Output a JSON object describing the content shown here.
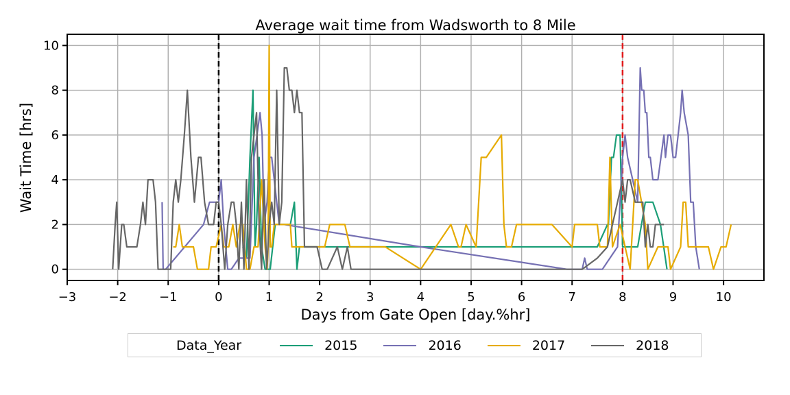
{
  "chart_data": {
    "type": "line",
    "title": "Average wait time from Wadsworth to 8 Mile",
    "xlabel": "Days from Gate Open [day.%hr]",
    "ylabel": "Wait Time [hrs]",
    "xlim": [
      -3,
      10.8
    ],
    "ylim": [
      -0.5,
      10.5
    ],
    "xticks": [
      "−3",
      "−2",
      "−1",
      "0",
      "1",
      "2",
      "3",
      "4",
      "5",
      "6",
      "7",
      "8",
      "9",
      "10"
    ],
    "yticks": [
      "0",
      "2",
      "4",
      "6",
      "8",
      "10"
    ],
    "grid": true,
    "legend": {
      "title": "Data_Year",
      "placement": "bottom-center, outside"
    },
    "reference_lines": [
      {
        "x": 0,
        "color": "#000000",
        "style": "dashed"
      },
      {
        "x": 8,
        "color": "#e31a1c",
        "style": "dashed"
      }
    ],
    "series": [
      {
        "name": "2015",
        "color": "#1b9e77",
        "x": [
          0.48,
          0.55,
          0.62,
          0.68,
          0.72,
          0.75,
          0.8,
          0.85,
          0.92,
          1.02,
          1.12,
          1.2,
          1.3,
          1.42,
          1.5,
          1.55,
          1.6,
          1.65,
          1.75,
          4.0,
          7.5,
          7.7,
          7.72,
          7.78,
          7.82,
          7.88,
          7.95,
          8.0,
          8.05,
          8.1,
          8.3,
          8.45,
          8.6,
          8.75,
          8.88
        ],
        "y": [
          1.0,
          0.5,
          5.0,
          8.0,
          1.0,
          2.0,
          5.0,
          1.0,
          0.0,
          0.0,
          2.0,
          2.0,
          2.0,
          2.0,
          3.0,
          0.0,
          1.0,
          1.0,
          1.0,
          1.0,
          1.0,
          2.0,
          2.0,
          5.0,
          5.0,
          6.0,
          6.0,
          1.0,
          1.0,
          1.0,
          1.0,
          3.0,
          3.0,
          2.0,
          0.0
        ]
      },
      {
        "name": "2016",
        "color": "#7570b3",
        "x": [
          -1.12,
          -1.1,
          -1.05,
          -0.3,
          -0.18,
          -0.1,
          0.0,
          0.05,
          0.1,
          0.18,
          0.25,
          0.4,
          0.5,
          0.62,
          0.7,
          0.76,
          0.82,
          0.86,
          0.9,
          0.96,
          1.0,
          1.05,
          1.1,
          1.15,
          1.2,
          1.25,
          1.3,
          4.0,
          6.9,
          7.2,
          7.25,
          7.3,
          7.6,
          7.9,
          8.0,
          8.05,
          8.1,
          8.2,
          8.3,
          8.35,
          8.38,
          8.42,
          8.45,
          8.48,
          8.52,
          8.55,
          8.6,
          8.7,
          8.82,
          8.85,
          8.9,
          8.95,
          9.0,
          9.05,
          9.15,
          9.18,
          9.22,
          9.3,
          9.35,
          9.4,
          9.45,
          9.52
        ],
        "y": [
          3.0,
          0.0,
          0.0,
          2.0,
          3.0,
          3.0,
          3.0,
          4.0,
          2.0,
          0.0,
          0.0,
          0.5,
          0.5,
          0.5,
          5.0,
          6.0,
          7.0,
          6.0,
          2.0,
          3.0,
          5.0,
          5.0,
          4.0,
          3.0,
          2.0,
          2.0,
          2.0,
          1.0,
          0.0,
          0.0,
          0.5,
          0.0,
          0.0,
          1.0,
          5.0,
          6.0,
          5.0,
          4.0,
          3.0,
          9.0,
          8.0,
          8.0,
          7.0,
          7.0,
          5.0,
          5.0,
          4.0,
          4.0,
          6.0,
          5.0,
          6.0,
          6.0,
          5.0,
          5.0,
          7.0,
          8.0,
          7.0,
          6.0,
          3.0,
          3.0,
          1.0,
          0.0
        ]
      },
      {
        "name": "2017",
        "color": "#e6ab02",
        "x": [
          -0.9,
          -0.85,
          -0.78,
          -0.72,
          -0.5,
          -0.42,
          -0.4,
          -0.2,
          -0.15,
          -0.05,
          0.05,
          0.1,
          0.2,
          0.28,
          0.35,
          0.42,
          0.48,
          0.55,
          0.62,
          0.7,
          0.78,
          0.85,
          0.92,
          0.96,
          0.98,
          1.0,
          1.02,
          1.05,
          1.1,
          1.3,
          1.42,
          1.45,
          1.5,
          1.55,
          1.6,
          2.1,
          2.2,
          2.5,
          2.6,
          3.3,
          4.0,
          4.6,
          4.75,
          4.8,
          4.9,
          5.1,
          5.15,
          5.2,
          5.3,
          5.6,
          5.65,
          5.7,
          5.8,
          5.9,
          6.6,
          7.0,
          7.05,
          7.5,
          7.55,
          7.6,
          7.7,
          7.75,
          7.8,
          7.95,
          8.15,
          8.25,
          8.3,
          8.45,
          8.5,
          8.7,
          8.9,
          8.95,
          9.15,
          9.2,
          9.25,
          9.3,
          9.7,
          9.8,
          9.95,
          10.0,
          10.05,
          10.15
        ],
        "y": [
          1.0,
          1.0,
          2.0,
          1.0,
          1.0,
          0.0,
          0.0,
          0.0,
          1.0,
          1.0,
          2.0,
          1.0,
          1.0,
          2.0,
          1.0,
          2.0,
          2.0,
          0.0,
          0.0,
          1.0,
          1.0,
          4.0,
          1.0,
          0.0,
          1.0,
          10.0,
          1.0,
          1.0,
          2.0,
          2.0,
          2.0,
          1.0,
          1.0,
          1.0,
          1.0,
          1.0,
          2.0,
          2.0,
          1.0,
          1.0,
          0.0,
          2.0,
          1.0,
          1.0,
          2.0,
          1.0,
          3.0,
          5.0,
          5.0,
          6.0,
          2.0,
          1.0,
          1.0,
          2.0,
          2.0,
          1.0,
          2.0,
          2.0,
          1.0,
          1.0,
          1.0,
          5.0,
          1.0,
          2.0,
          0.0,
          4.0,
          4.0,
          2.0,
          0.0,
          1.0,
          1.0,
          0.0,
          1.0,
          3.0,
          3.0,
          1.0,
          1.0,
          0.0,
          1.0,
          1.0,
          1.0,
          2.0
        ]
      },
      {
        "name": "2018",
        "color": "#666666",
        "x": [
          -2.1,
          -2.05,
          -2.02,
          -1.98,
          -1.92,
          -1.88,
          -1.82,
          -1.62,
          -1.55,
          -1.5,
          -1.45,
          -1.4,
          -1.3,
          -1.25,
          -1.2,
          -1.15,
          -1.05,
          -0.95,
          -0.9,
          -0.85,
          -0.8,
          -0.75,
          -0.68,
          -0.62,
          -0.55,
          -0.48,
          -0.4,
          -0.35,
          -0.28,
          -0.2,
          -0.1,
          -0.05,
          0.0,
          0.05,
          0.12,
          0.18,
          0.25,
          0.3,
          0.35,
          0.4,
          0.45,
          0.5,
          0.55,
          0.6,
          0.65,
          0.7,
          0.75,
          0.8,
          0.85,
          0.9,
          0.95,
          1.0,
          1.05,
          1.1,
          1.15,
          1.2,
          1.25,
          1.3,
          1.35,
          1.4,
          1.45,
          1.5,
          1.55,
          1.6,
          1.65,
          1.7,
          1.85,
          1.9,
          1.95,
          2.05,
          2.15,
          2.25,
          2.35,
          2.45,
          2.55,
          2.62,
          4.0,
          7.2,
          7.5,
          7.7,
          7.8,
          7.9,
          8.0,
          8.05,
          8.1,
          8.15,
          8.25,
          8.35,
          8.4,
          8.45,
          8.5,
          8.55,
          8.6,
          8.65,
          8.75,
          8.82
        ],
        "y": [
          0.0,
          2.0,
          3.0,
          0.0,
          2.0,
          2.0,
          1.0,
          1.0,
          2.0,
          3.0,
          2.0,
          4.0,
          4.0,
          3.0,
          0.0,
          0.0,
          0.0,
          0.0,
          3.0,
          4.0,
          3.0,
          4.0,
          6.0,
          8.0,
          5.0,
          3.0,
          5.0,
          5.0,
          3.0,
          2.0,
          2.0,
          3.0,
          3.0,
          2.0,
          0.0,
          2.0,
          3.0,
          3.0,
          2.0,
          0.0,
          3.0,
          0.0,
          4.0,
          0.0,
          5.0,
          6.0,
          7.0,
          2.0,
          0.0,
          4.0,
          0.0,
          2.0,
          3.0,
          2.0,
          8.0,
          2.0,
          3.0,
          9.0,
          9.0,
          8.0,
          8.0,
          7.0,
          8.0,
          7.0,
          7.0,
          1.0,
          1.0,
          1.0,
          1.0,
          0.0,
          0.0,
          0.5,
          1.0,
          0.0,
          1.0,
          0.0,
          0.0,
          0.0,
          0.5,
          1.0,
          2.0,
          3.0,
          4.0,
          3.0,
          4.0,
          4.0,
          3.0,
          3.0,
          3.0,
          1.0,
          2.0,
          1.0,
          1.0,
          2.0,
          2.0,
          2.0
        ]
      }
    ]
  }
}
